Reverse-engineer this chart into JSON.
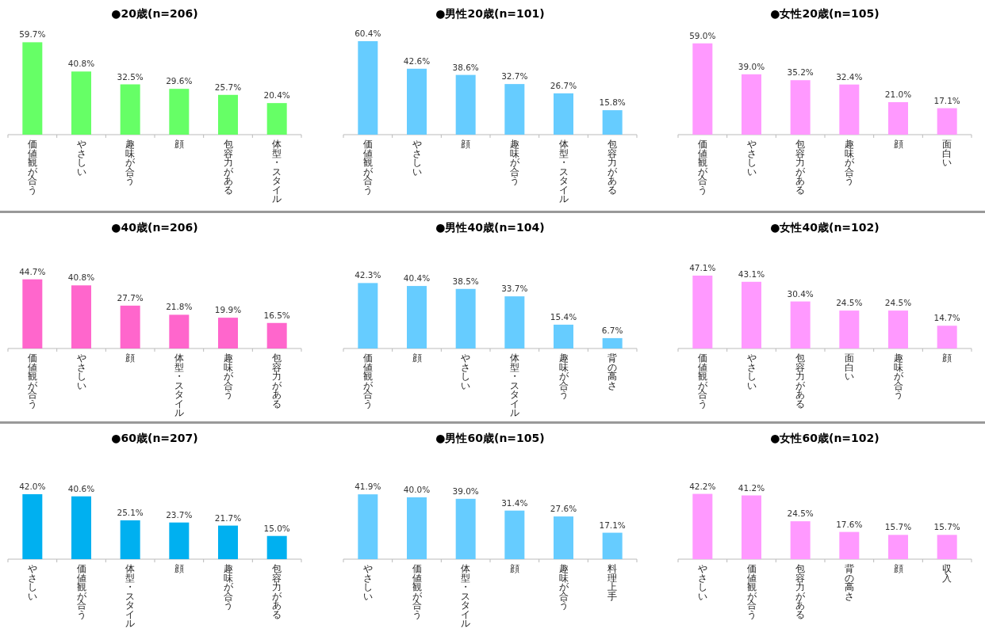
{
  "chart_data": [
    {
      "type": "bar",
      "title": "●20歳(n=206)",
      "color": "#66ff66",
      "categories": [
        "価値観が合う",
        "やさしい",
        "趣味が合う",
        "顔",
        "包容力がある",
        "体型・スタイル"
      ],
      "values": [
        59.7,
        40.8,
        32.5,
        29.6,
        25.7,
        20.4
      ],
      "value_labels": [
        "59.7%",
        "40.8%",
        "32.5%",
        "29.6%",
        "25.7%",
        "20.4%"
      ]
    },
    {
      "type": "bar",
      "title": "●男性20歳(n=101)",
      "color": "#66ccff",
      "categories": [
        "価値観が合う",
        "やさしい",
        "顔",
        "趣味が合う",
        "体型・スタイル",
        "包容力がある"
      ],
      "values": [
        60.4,
        42.6,
        38.6,
        32.7,
        26.7,
        15.8
      ],
      "value_labels": [
        "60.4%",
        "42.6%",
        "38.6%",
        "32.7%",
        "26.7%",
        "15.8%"
      ]
    },
    {
      "type": "bar",
      "title": "●女性20歳(n=105)",
      "color": "#ff99ff",
      "categories": [
        "価値観が合う",
        "やさしい",
        "包容力がある",
        "趣味が合う",
        "顔",
        "面白い"
      ],
      "values": [
        59.0,
        39.0,
        35.2,
        32.4,
        21.0,
        17.1
      ],
      "value_labels": [
        "59.0%",
        "39.0%",
        "35.2%",
        "32.4%",
        "21.0%",
        "17.1%"
      ]
    },
    {
      "type": "bar",
      "title": "●40歳(n=206)",
      "color": "#ff66cc",
      "categories": [
        "価値観が合う",
        "やさしい",
        "顔",
        "体型・スタイル",
        "趣味が合う",
        "包容力がある"
      ],
      "values": [
        44.7,
        40.8,
        27.7,
        21.8,
        19.9,
        16.5
      ],
      "value_labels": [
        "44.7%",
        "40.8%",
        "27.7%",
        "21.8%",
        "19.9%",
        "16.5%"
      ]
    },
    {
      "type": "bar",
      "title": "●男性40歳(n=104)",
      "color": "#66ccff",
      "categories": [
        "価値観が合う",
        "顔",
        "やさしい",
        "体型・スタイル",
        "趣味が合う",
        "背の高さ"
      ],
      "values": [
        42.3,
        40.4,
        38.5,
        33.7,
        15.4,
        6.7
      ],
      "value_labels": [
        "42.3%",
        "40.4%",
        "38.5%",
        "33.7%",
        "15.4%",
        "6.7%"
      ]
    },
    {
      "type": "bar",
      "title": "●女性40歳(n=102)",
      "color": "#ff99ff",
      "categories": [
        "価値観が合う",
        "やさしい",
        "包容力がある",
        "面白い",
        "趣味が合う",
        "顔"
      ],
      "values": [
        47.1,
        43.1,
        30.4,
        24.5,
        24.5,
        14.7
      ],
      "value_labels": [
        "47.1%",
        "43.1%",
        "30.4%",
        "24.5%",
        "24.5%",
        "14.7%"
      ]
    },
    {
      "type": "bar",
      "title": "●60歳(n=207)",
      "color": "#00b0f0",
      "categories": [
        "やさしい",
        "価値観が合う",
        "体型・スタイル",
        "顔",
        "趣味が合う",
        "包容力がある"
      ],
      "values": [
        42.0,
        40.6,
        25.1,
        23.7,
        21.7,
        15.0
      ],
      "value_labels": [
        "42.0%",
        "40.6%",
        "25.1%",
        "23.7%",
        "21.7%",
        "15.0%"
      ]
    },
    {
      "type": "bar",
      "title": "●男性60歳(n=105)",
      "color": "#66ccff",
      "categories": [
        "やさしい",
        "価値観が合う",
        "体型・スタイル",
        "顔",
        "趣味が合う",
        "料理上手"
      ],
      "values": [
        41.9,
        40.0,
        39.0,
        31.4,
        27.6,
        17.1
      ],
      "value_labels": [
        "41.9%",
        "40.0%",
        "39.0%",
        "31.4%",
        "27.6%",
        "17.1%"
      ]
    },
    {
      "type": "bar",
      "title": "●女性60歳(n=102)",
      "color": "#ff99ff",
      "categories": [
        "やさしい",
        "価値観が合う",
        "包容力がある",
        "背の高さ",
        "顔",
        "収入"
      ],
      "values": [
        42.2,
        41.2,
        24.5,
        17.6,
        15.7,
        15.7
      ],
      "value_labels": [
        "42.2%",
        "41.2%",
        "24.5%",
        "17.6%",
        "15.7%",
        "15.7%"
      ]
    }
  ]
}
